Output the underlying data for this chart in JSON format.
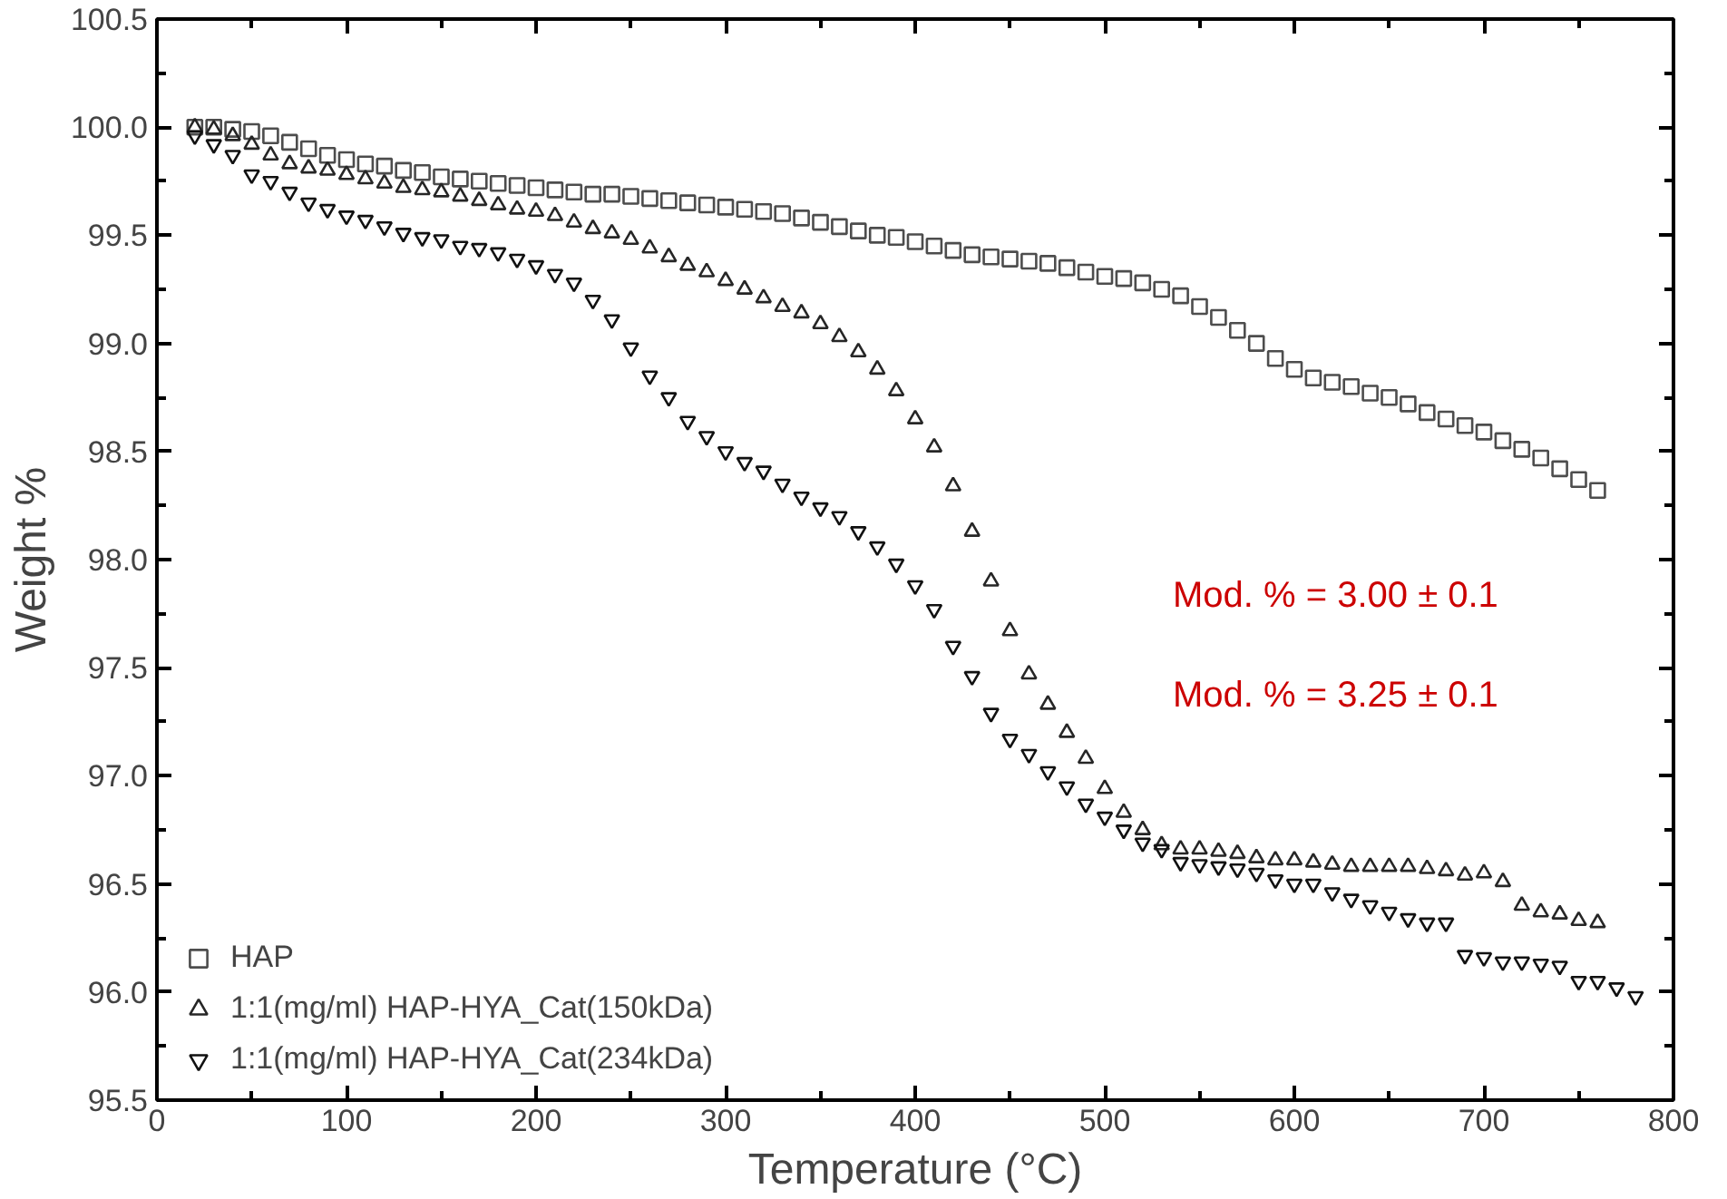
{
  "chart_data": {
    "type": "scatter",
    "xlabel": "Temperature (°C)",
    "ylabel": "Weight %",
    "xlim": [
      0,
      800
    ],
    "ylim": [
      95.5,
      100.5
    ],
    "xticks": [
      0,
      100,
      200,
      300,
      400,
      500,
      600,
      700,
      800
    ],
    "yticks": [
      95.5,
      {
        "value": 96,
        "label": "96.0"
      },
      96.5,
      {
        "value": 97,
        "label": "97.0"
      },
      97.5,
      {
        "value": 98,
        "label": "98.0"
      },
      98.5,
      {
        "value": 99,
        "label": "99.0"
      },
      99.5,
      {
        "value": 100,
        "label": "100.0"
      },
      100.5
    ],
    "grid": false,
    "legend": "bottom left",
    "annotations": [
      "Mod. % = 3.00 ± 0.1",
      "Mod. % = 3.25 ± 0.1"
    ],
    "x": [
      20,
      30,
      40,
      50,
      60,
      70,
      80,
      90,
      100,
      110,
      120,
      130,
      140,
      150,
      160,
      170,
      180,
      190,
      200,
      210,
      220,
      230,
      240,
      250,
      260,
      270,
      280,
      290,
      300,
      310,
      320,
      330,
      340,
      350,
      360,
      370,
      380,
      390,
      400,
      410,
      420,
      430,
      440,
      450,
      460,
      470,
      480,
      490,
      500,
      510,
      520,
      530,
      540,
      550,
      560,
      570,
      580,
      590,
      600,
      610,
      620,
      630,
      640,
      650,
      660,
      670,
      680,
      690,
      700,
      710,
      720,
      730,
      740,
      750,
      760
    ],
    "series": [
      {
        "name": "HAP",
        "color": "#4d4d4d",
        "marker": "square",
        "values": [
          100.0,
          100.0,
          99.99,
          99.98,
          99.96,
          99.93,
          99.9,
          99.87,
          99.85,
          99.83,
          99.82,
          99.8,
          99.79,
          99.77,
          99.76,
          99.75,
          99.74,
          99.73,
          99.72,
          99.71,
          99.7,
          99.69,
          99.69,
          99.68,
          99.67,
          99.66,
          99.65,
          99.64,
          99.63,
          99.62,
          99.61,
          99.6,
          99.58,
          99.56,
          99.54,
          99.52,
          99.5,
          99.49,
          99.47,
          99.45,
          99.43,
          99.41,
          99.4,
          99.39,
          99.38,
          99.37,
          99.35,
          99.33,
          99.31,
          99.3,
          99.28,
          99.25,
          99.22,
          99.17,
          99.12,
          99.06,
          99.0,
          98.93,
          98.88,
          98.84,
          98.82,
          98.8,
          98.77,
          98.75,
          98.72,
          98.68,
          98.65,
          98.62,
          98.59,
          98.55,
          98.51,
          98.47,
          98.42,
          98.37,
          98.32
        ]
      },
      {
        "name": "1:1(mg/ml) HAP-HYA_Cat(150kDa)",
        "color": "#262626",
        "marker": "triangle",
        "values": [
          100.0,
          99.99,
          99.96,
          99.92,
          99.87,
          99.83,
          99.81,
          99.8,
          99.78,
          99.76,
          99.74,
          99.72,
          99.71,
          99.7,
          99.68,
          99.66,
          99.64,
          99.62,
          99.61,
          99.59,
          99.56,
          99.53,
          99.51,
          99.48,
          99.44,
          99.4,
          99.36,
          99.33,
          99.29,
          99.25,
          99.21,
          99.17,
          99.14,
          99.09,
          99.03,
          98.96,
          98.88,
          98.78,
          98.65,
          98.52,
          98.34,
          98.13,
          97.9,
          97.67,
          97.47,
          97.33,
          97.2,
          97.08,
          96.94,
          96.83,
          96.75,
          96.68,
          96.66,
          96.66,
          96.65,
          96.64,
          96.62,
          96.61,
          96.61,
          96.6,
          96.59,
          96.58,
          96.58,
          96.58,
          96.58,
          96.57,
          96.56,
          96.54,
          96.55,
          96.51,
          96.4,
          96.37,
          96.36,
          96.33,
          96.32
        ]
      },
      {
        "name": "1:1(mg/ml) HAP-HYA_Cat(234kDa)",
        "color": "#111111",
        "marker": "triangle",
        "x": [
          20,
          30,
          40,
          50,
          60,
          70,
          80,
          90,
          100,
          110,
          120,
          130,
          140,
          150,
          160,
          170,
          180,
          190,
          200,
          210,
          220,
          230,
          240,
          250,
          260,
          270,
          280,
          290,
          300,
          310,
          320,
          330,
          340,
          350,
          360,
          370,
          380,
          390,
          400,
          410,
          420,
          430,
          440,
          450,
          460,
          470,
          480,
          490,
          500,
          510,
          520,
          530,
          540,
          550,
          560,
          570,
          580,
          590,
          600,
          610,
          620,
          630,
          640,
          650,
          660,
          670,
          680,
          690,
          700,
          710,
          720,
          730,
          740,
          750,
          760,
          770,
          780
        ],
        "values": [
          99.96,
          99.92,
          99.87,
          99.78,
          99.75,
          99.7,
          99.65,
          99.62,
          99.59,
          99.57,
          99.54,
          99.51,
          99.49,
          99.48,
          99.45,
          99.44,
          99.42,
          99.39,
          99.36,
          99.32,
          99.28,
          99.2,
          99.11,
          98.98,
          98.85,
          98.75,
          98.64,
          98.57,
          98.5,
          98.45,
          98.41,
          98.35,
          98.29,
          98.24,
          98.2,
          98.13,
          98.06,
          97.98,
          97.88,
          97.77,
          97.6,
          97.46,
          97.29,
          97.17,
          97.1,
          97.02,
          96.95,
          96.87,
          96.81,
          96.75,
          96.69,
          96.66,
          96.6,
          96.59,
          96.58,
          96.57,
          96.55,
          96.52,
          96.5,
          96.5,
          96.46,
          96.43,
          96.4,
          96.37,
          96.34,
          96.32,
          96.32,
          96.17,
          96.16,
          96.14,
          96.14,
          96.13,
          96.12,
          96.05,
          96.05,
          96.02,
          95.98
        ]
      }
    ]
  }
}
